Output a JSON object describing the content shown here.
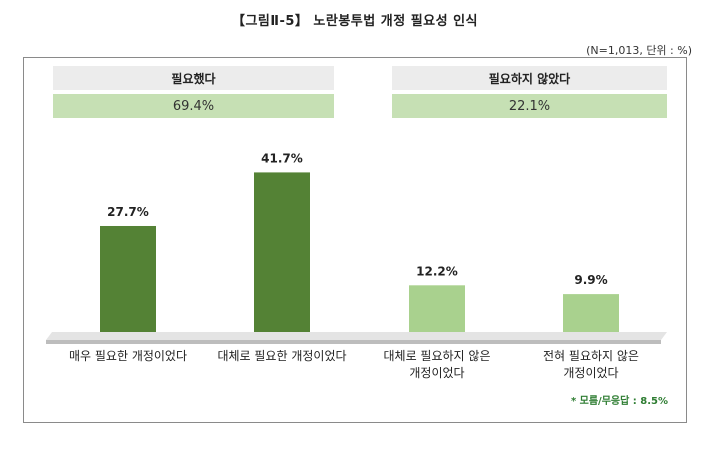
{
  "header": {
    "title": "【그림Ⅱ-5】 노란봉투법 개정 필요성 인식",
    "note": "(N=1,013, 단위 : %)"
  },
  "groups": [
    {
      "label": "필요했다",
      "value": "69.4%"
    },
    {
      "label": "필요하지 않았다",
      "value": "22.1%"
    }
  ],
  "footnote": "* 모름/무응답 : 8.5%",
  "colors": {
    "dark": "#548235",
    "light": "#a9d18e",
    "group_fill": "#c6e0b4",
    "base": "#d9d9d9"
  },
  "chart_data": {
    "type": "bar",
    "categories": [
      "매우 필요한 개정이었다",
      "대체로 필요한 개정이었다",
      "대체로 필요하지 않은 개정이었다",
      "전혀 필요하지 않은 개정이었다"
    ],
    "category_lines": [
      [
        "매우 필요한 개정이었다"
      ],
      [
        "대체로 필요한 개정이었다"
      ],
      [
        "대체로 필요하지 않은",
        "개정이었다"
      ],
      [
        "전혀 필요하지 않은",
        "개정이었다"
      ]
    ],
    "values": [
      27.7,
      41.7,
      12.2,
      9.9
    ],
    "value_labels": [
      "27.7%",
      "41.7%",
      "12.2%",
      "9.9%"
    ],
    "bar_colors": [
      "#548235",
      "#548235",
      "#a9d18e",
      "#a9d18e"
    ],
    "ylim": [
      0,
      45
    ],
    "grid": false,
    "title": "",
    "xlabel": "",
    "ylabel": ""
  }
}
